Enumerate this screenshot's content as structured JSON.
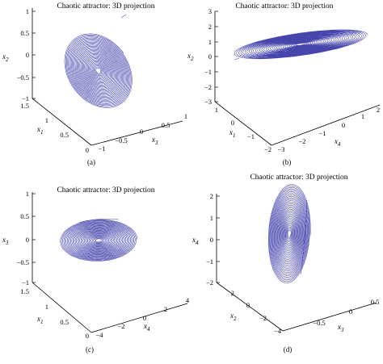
{
  "colors": {
    "trajectory": "#3b3ba8",
    "axes": "#000000"
  },
  "chart_data": [
    {
      "type": "line",
      "panel": "(a)",
      "title": "Chaotic attractor: 3D projection",
      "zlabel": "x2",
      "zlabel_html": [
        "x",
        "2"
      ],
      "xlabel": "x1",
      "xlabel_html": [
        "x",
        "1"
      ],
      "ylabel": "x3",
      "ylabel_html": [
        "x",
        "3"
      ],
      "z_ticks": [
        "1",
        "0.5",
        "0",
        "−0.5",
        "−1"
      ],
      "x_ticks": [
        "1.5",
        "1",
        "0.5",
        "0"
      ],
      "y_ticks": [
        "−1",
        "−0.5",
        "0",
        "0.5",
        "1"
      ],
      "zlim": [
        -1,
        1
      ],
      "xlim": [
        0,
        1.5
      ],
      "ylim": [
        -1,
        1
      ],
      "grid": false
    },
    {
      "type": "line",
      "panel": "(b)",
      "title": "Chaotic attractor: 3D projection",
      "zlabel": "x2",
      "zlabel_html": [
        "x",
        "2"
      ],
      "xlabel": "x1",
      "xlabel_html": [
        "x",
        "1"
      ],
      "ylabel": "x4",
      "ylabel_html": [
        "x",
        "4"
      ],
      "z_ticks": [
        "3",
        "2",
        "1",
        "0",
        "−1",
        "−2",
        "−3"
      ],
      "x_ticks": [
        "1",
        "0",
        "−1",
        "−2"
      ],
      "y_ticks": [
        "−3",
        "−2",
        "−1",
        "0",
        "1",
        "2"
      ],
      "zlim": [
        -3,
        3
      ],
      "xlim": [
        -2,
        1
      ],
      "ylim": [
        -3,
        2
      ],
      "grid": false
    },
    {
      "type": "line",
      "panel": "(c)",
      "title": "Chaotic attractor: 3D projection",
      "zlabel": "x3",
      "zlabel_html": [
        "x",
        "3"
      ],
      "xlabel": "x1",
      "xlabel_html": [
        "x",
        "1"
      ],
      "ylabel": "x4",
      "ylabel_html": [
        "x",
        "4"
      ],
      "z_ticks": [
        "1",
        "0.5",
        "0",
        "−0.5",
        "−1"
      ],
      "x_ticks": [
        "1.5",
        "1",
        "0.5",
        "0"
      ],
      "y_ticks": [
        "−4",
        "−2",
        "0",
        "2",
        "4"
      ],
      "zlim": [
        -1,
        1
      ],
      "xlim": [
        0,
        1.5
      ],
      "ylim": [
        -4,
        4
      ],
      "grid": false
    },
    {
      "type": "line",
      "panel": "(d)",
      "title": "Chaotic attractor: 3D projection",
      "zlabel": "x4",
      "zlabel_html": [
        "x",
        "4"
      ],
      "xlabel": "x2",
      "xlabel_html": [
        "x",
        "2"
      ],
      "ylabel": "x3",
      "ylabel_html": [
        "x",
        "3"
      ],
      "z_ticks": [
        "2",
        "1",
        "0",
        "−1",
        "−2"
      ],
      "x_ticks": [
        "2",
        "0",
        "−2",
        "−4"
      ],
      "y_ticks": [
        "−0.5",
        "0",
        "0.5"
      ],
      "zlim": [
        -2,
        2
      ],
      "xlim": [
        -4,
        2
      ],
      "ylim": [
        -0.5,
        0.5
      ],
      "grid": false
    }
  ]
}
